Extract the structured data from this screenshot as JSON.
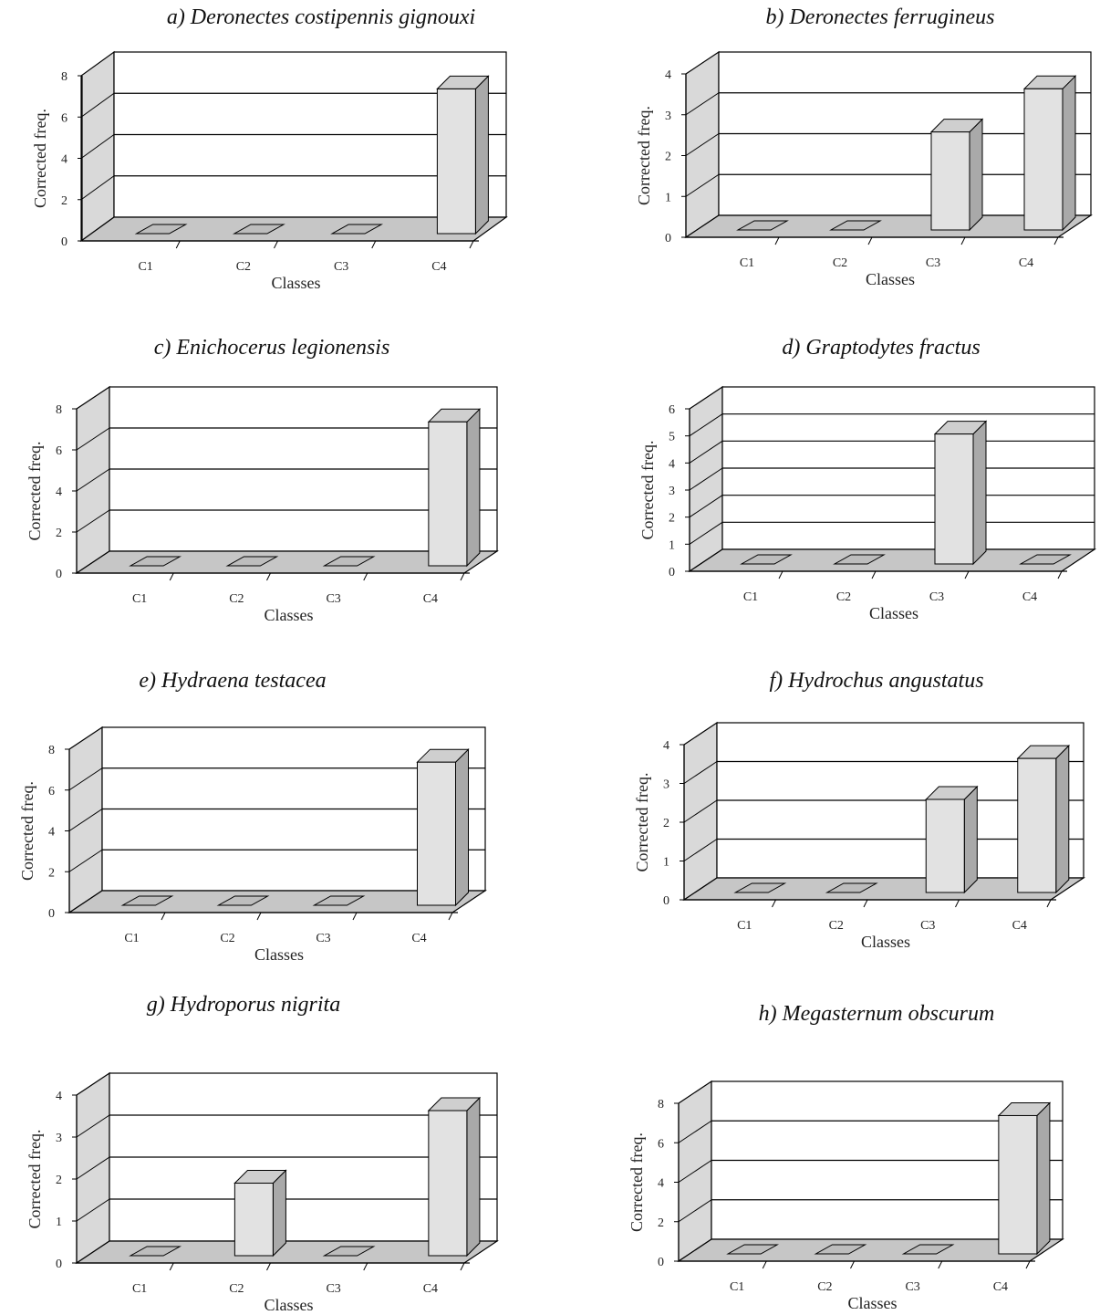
{
  "chart_data": [
    {
      "type": "bar",
      "title": "a) Deronectes costipennis gignouxi",
      "categories": [
        "C1",
        "C2",
        "C3",
        "C4"
      ],
      "values": [
        0,
        0,
        0,
        7.3
      ],
      "xlabel": "Classes",
      "ylabel": "Corrected freq.",
      "ylim": [
        0,
        8
      ],
      "yticks": [
        "0",
        "2",
        "4",
        "6",
        "8"
      ],
      "grid": true
    },
    {
      "type": "bar",
      "title": "b) Deronectes ferrugineus",
      "categories": [
        "C1",
        "C2",
        "C3",
        "C4"
      ],
      "values": [
        0,
        0,
        2.5,
        3.6
      ],
      "xlabel": "Classes",
      "ylabel": "Corrected freq.",
      "ylim": [
        0,
        4
      ],
      "yticks": [
        "0",
        "1",
        "2",
        "3",
        "4"
      ],
      "grid": true
    },
    {
      "type": "bar",
      "title": "c) Enichocerus legionensis",
      "categories": [
        "C1",
        "C2",
        "C3",
        "C4"
      ],
      "values": [
        0,
        0,
        0,
        7.3
      ],
      "xlabel": "Classes",
      "ylabel": "Corrected freq.",
      "ylim": [
        0,
        8
      ],
      "yticks": [
        "0",
        "2",
        "4",
        "6",
        "8"
      ],
      "grid": true
    },
    {
      "type": "bar",
      "title": "d) Graptodytes fractus",
      "categories": [
        "C1",
        "C2",
        "C3",
        "C4"
      ],
      "values": [
        0,
        0,
        5,
        0
      ],
      "xlabel": "Classes",
      "ylabel": "Corrected freq.",
      "ylim": [
        0,
        6
      ],
      "yticks": [
        "0",
        "1",
        "2",
        "3",
        "4",
        "5",
        "6"
      ],
      "grid": true
    },
    {
      "type": "bar",
      "title": "e) Hydraena testacea",
      "categories": [
        "C1",
        "C2",
        "C3",
        "C4"
      ],
      "values": [
        0,
        0,
        0,
        7.3
      ],
      "xlabel": "Classes",
      "ylabel": "Corrected freq.",
      "ylim": [
        0,
        8
      ],
      "yticks": [
        "0",
        "2",
        "4",
        "6",
        "8"
      ],
      "grid": true
    },
    {
      "type": "bar",
      "title": "f) Hydrochus angustatus",
      "categories": [
        "C1",
        "C2",
        "C3",
        "C4"
      ],
      "values": [
        0,
        0,
        2.5,
        3.6
      ],
      "xlabel": "Classes",
      "ylabel": "Corrected freq.",
      "ylim": [
        0,
        4
      ],
      "yticks": [
        "0",
        "1",
        "2",
        "3",
        "4"
      ],
      "grid": true
    },
    {
      "type": "bar",
      "title": "g) Hydroporus nigrita",
      "categories": [
        "C1",
        "C2",
        "C3",
        "C4"
      ],
      "values": [
        0,
        1.8,
        0,
        3.6
      ],
      "xlabel": "Classes",
      "ylabel": "Corrected freq.",
      "ylim": [
        0,
        4
      ],
      "yticks": [
        "0",
        "1",
        "2",
        "3",
        "4"
      ],
      "grid": true
    },
    {
      "type": "bar",
      "title": "h) Megasternum obscurum",
      "categories": [
        "C1",
        "C2",
        "C3",
        "C4"
      ],
      "values": [
        0,
        0,
        0,
        7.3
      ],
      "xlabel": "Classes",
      "ylabel": "Corrected freq.",
      "ylim": [
        0,
        8
      ],
      "yticks": [
        "0",
        "2",
        "4",
        "6",
        "8"
      ],
      "grid": true
    }
  ],
  "colors": {
    "wall": "#d9d9d9",
    "floor": "#c6c6c6",
    "bar_front": "#e2e2e2",
    "bar_side": "#a9a9a9",
    "bar_top": "#cfcfcf",
    "stub": "#bdbdbd",
    "grid": "#000000"
  }
}
